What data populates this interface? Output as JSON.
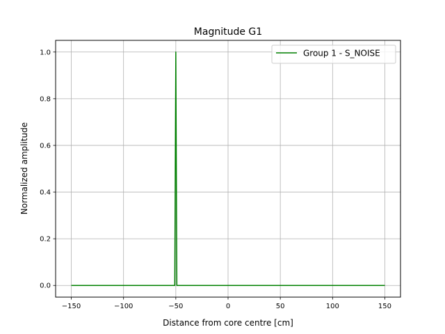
{
  "chart_data": {
    "type": "line",
    "title": "Magnitude G1",
    "xlabel": "Distance from core centre [cm]",
    "ylabel": "Normalized amplitude",
    "xlim": [
      -165,
      165
    ],
    "ylim": [
      -0.05,
      1.05
    ],
    "xticks": [
      -150,
      -100,
      -50,
      0,
      50,
      100,
      150
    ],
    "xtick_labels": [
      "−150",
      "−100",
      "−50",
      "0",
      "50",
      "100",
      "150"
    ],
    "yticks": [
      0.0,
      0.2,
      0.4,
      0.6,
      0.8,
      1.0
    ],
    "ytick_labels": [
      "0.0",
      "0.2",
      "0.4",
      "0.6",
      "0.8",
      "1.0"
    ],
    "grid": true,
    "legend_position": "top-right",
    "series": [
      {
        "name": "Group 1 - S_NOISE",
        "color": "#008000",
        "x": [
          -150,
          -51,
          -50,
          -49,
          150
        ],
        "y": [
          0,
          0,
          1,
          0,
          0
        ]
      }
    ]
  }
}
